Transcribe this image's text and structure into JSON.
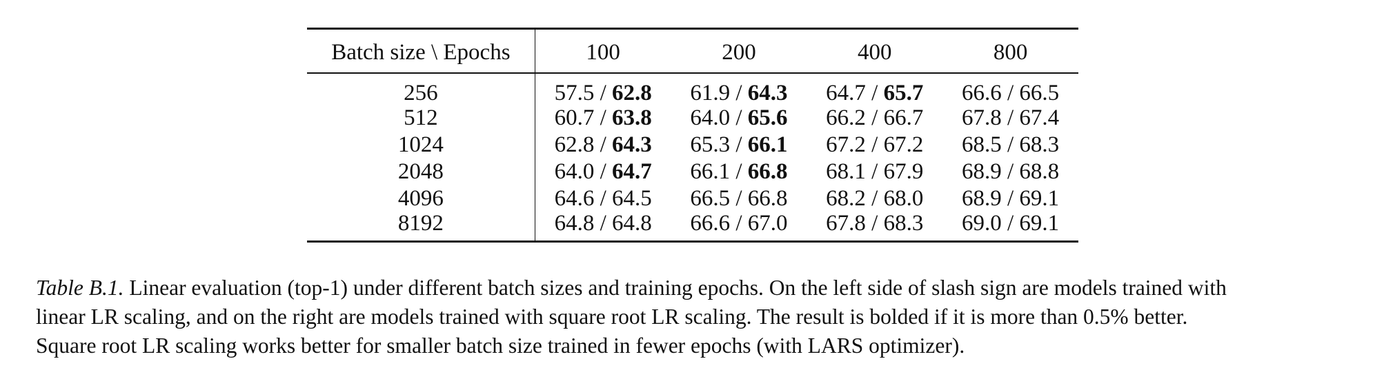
{
  "table": {
    "header": {
      "corner": "Batch size \\  Epochs",
      "epochs": [
        "100",
        "200",
        "400",
        "800"
      ]
    },
    "rows": [
      {
        "batch": "256",
        "cells": [
          {
            "linear": "57.5",
            "sqrt": "62.8",
            "bold": true
          },
          {
            "linear": "61.9",
            "sqrt": "64.3",
            "bold": true
          },
          {
            "linear": "64.7",
            "sqrt": "65.7",
            "bold": true
          },
          {
            "linear": "66.6",
            "sqrt": "66.5",
            "bold": false
          }
        ]
      },
      {
        "batch": "512",
        "cells": [
          {
            "linear": "60.7",
            "sqrt": "63.8",
            "bold": true
          },
          {
            "linear": "64.0",
            "sqrt": "65.6",
            "bold": true
          },
          {
            "linear": "66.2",
            "sqrt": "66.7",
            "bold": false
          },
          {
            "linear": "67.8",
            "sqrt": "67.4",
            "bold": false
          }
        ]
      },
      {
        "batch": "1024",
        "cells": [
          {
            "linear": "62.8",
            "sqrt": "64.3",
            "bold": true
          },
          {
            "linear": "65.3",
            "sqrt": "66.1",
            "bold": true
          },
          {
            "linear": "67.2",
            "sqrt": "67.2",
            "bold": false
          },
          {
            "linear": "68.5",
            "sqrt": "68.3",
            "bold": false
          }
        ]
      },
      {
        "batch": "2048",
        "cells": [
          {
            "linear": "64.0",
            "sqrt": "64.7",
            "bold": true
          },
          {
            "linear": "66.1",
            "sqrt": "66.8",
            "bold": true
          },
          {
            "linear": "68.1",
            "sqrt": "67.9",
            "bold": false
          },
          {
            "linear": "68.9",
            "sqrt": "68.8",
            "bold": false
          }
        ]
      },
      {
        "batch": "4096",
        "cells": [
          {
            "linear": "64.6",
            "sqrt": "64.5",
            "bold": false
          },
          {
            "linear": "66.5",
            "sqrt": "66.8",
            "bold": false
          },
          {
            "linear": "68.2",
            "sqrt": "68.0",
            "bold": false
          },
          {
            "linear": "68.9",
            "sqrt": "69.1",
            "bold": false
          }
        ]
      },
      {
        "batch": "8192",
        "cells": [
          {
            "linear": "64.8",
            "sqrt": "64.8",
            "bold": false
          },
          {
            "linear": "66.6",
            "sqrt": "67.0",
            "bold": false
          },
          {
            "linear": "67.8",
            "sqrt": "68.3",
            "bold": false
          },
          {
            "linear": "69.0",
            "sqrt": "69.1",
            "bold": false
          }
        ]
      }
    ]
  },
  "caption": {
    "label": "Table B.1.",
    "line1": "Linear evaluation (top-1) under different batch sizes and training epochs. On the left side of slash sign are models trained with",
    "line2": "linear LR scaling, and on the right are models trained with square root LR scaling.  The result is bolded if it is more than 0.5% better.",
    "line3": "Square root LR scaling works better for smaller batch size trained in fewer epochs (with LARS optimizer)."
  }
}
